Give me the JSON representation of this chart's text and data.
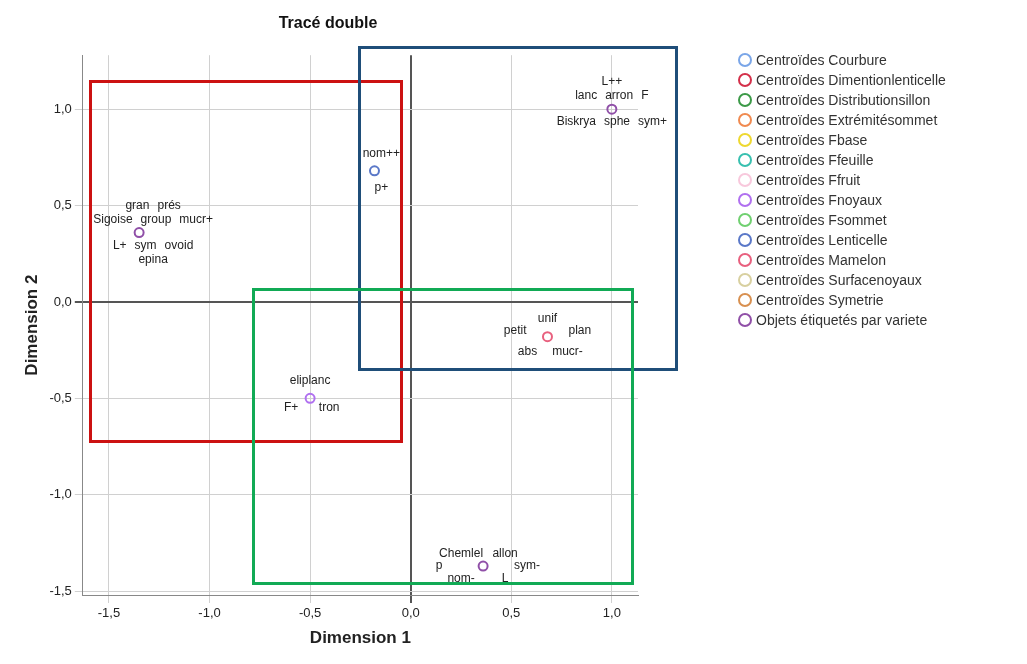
{
  "chart_data": {
    "type": "scatter",
    "title": "Tracé double",
    "xlabel": "Dimension 1",
    "ylabel": "Dimension 2",
    "xlim": [
      -1.63,
      1.13
    ],
    "ylim": [
      -1.52,
      1.28
    ],
    "xticks": [
      {
        "value": -1.5,
        "label": "-1,5"
      },
      {
        "value": -1,
        "label": "-1,0"
      },
      {
        "value": -0.5,
        "label": "-0,5"
      },
      {
        "value": 0,
        "label": "0,0"
      },
      {
        "value": 0.5,
        "label": "0,5"
      },
      {
        "value": 1,
        "label": "1,0"
      }
    ],
    "yticks": [
      {
        "value": -1.5,
        "label": "-1,5"
      },
      {
        "value": -1,
        "label": "-1,0"
      },
      {
        "value": -0.5,
        "label": "-0,5"
      },
      {
        "value": 0,
        "label": "0,0"
      },
      {
        "value": 0.5,
        "label": "0,5"
      },
      {
        "value": 1,
        "label": "1,0"
      }
    ],
    "grid": true,
    "legend": "top right",
    "marker": "circle",
    "series": [
      {
        "name": "Centroïdes Courbure",
        "color": "#7aa6e8"
      },
      {
        "name": "Centroïdes Dimentionlenticelle",
        "color": "#d4304a"
      },
      {
        "name": "Centroïdes Distributionsillon",
        "color": "#3c9a48"
      },
      {
        "name": "Centroïdes Extrémitésommet",
        "color": "#f08a50"
      },
      {
        "name": "Centroïdes Fbase",
        "color": "#eed830"
      },
      {
        "name": "Centroïdes Ffeuille",
        "color": "#38c0b0"
      },
      {
        "name": "Centroïdes Ffruit",
        "color": "#f8c8dc"
      },
      {
        "name": "Centroïdes Fnoyaux",
        "color": "#b070f0",
        "x": [
          -0.5
        ],
        "values": [
          -0.5
        ],
        "value_labels": [
          [
            "eliplanc",
            "tron",
            "F+"
          ]
        ]
      },
      {
        "name": "Centroïdes Fsommet",
        "color": "#70d070"
      },
      {
        "name": "Centroïdes Lenticelle",
        "color": "#5a78c8",
        "x": [
          -0.18
        ],
        "values": [
          0.68
        ],
        "value_labels": [
          [
            "nom++",
            "p+"
          ]
        ]
      },
      {
        "name": "Centroïdes Mamelon",
        "color": "#e8607e",
        "x": [
          0.68
        ],
        "values": [
          -0.18
        ],
        "value_labels": [
          [
            "unif",
            "plan",
            "mucr-",
            "abs",
            "petit"
          ]
        ]
      },
      {
        "name": "Centroïdes Surfacenoyaux",
        "color": "#d8d0a0"
      },
      {
        "name": "Centroïdes Symetrie",
        "color": "#d89050"
      },
      {
        "name": "Objets étiquetés par variete",
        "color": "#9050a8",
        "x": [
          -1.35,
          1.0,
          0.36
        ],
        "values": [
          0.36,
          1.0,
          -1.37
        ],
        "value_labels": [
          [
            "Sigoise",
            "group",
            "mucr+",
            "gran",
            "prés",
            "L+",
            "sym",
            "ovoid",
            "epina"
          ],
          [
            "lanc",
            "arron",
            "F",
            "L++",
            "Biskrya",
            "sphe",
            "sym+"
          ],
          [
            "allon",
            "sym-",
            "L",
            "nom-",
            "p",
            "Chemlel"
          ]
        ]
      }
    ]
  }
}
